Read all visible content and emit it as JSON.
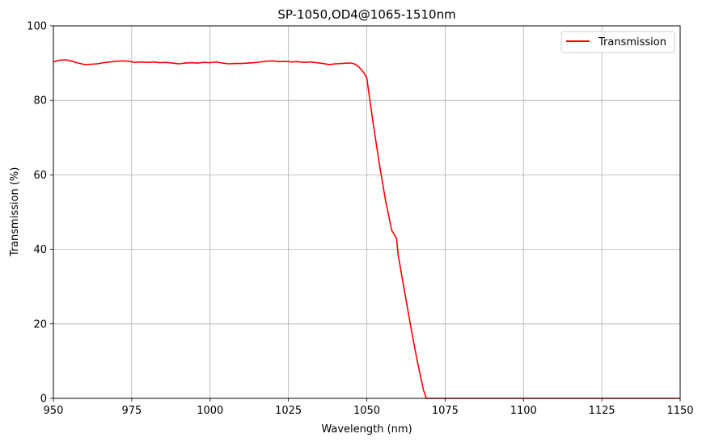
{
  "chart_data": {
    "type": "line",
    "title": "SP-1050,OD4@1065-1510nm",
    "xlabel": "Wavelength (nm)",
    "ylabel": "Transmission (%)",
    "xlim": [
      950,
      1150
    ],
    "ylim": [
      0,
      100
    ],
    "xticks": [
      950,
      975,
      1000,
      1025,
      1050,
      1075,
      1100,
      1125,
      1150
    ],
    "yticks": [
      0,
      20,
      40,
      60,
      80,
      100
    ],
    "grid": true,
    "legend_position": "upper right",
    "series": [
      {
        "name": "Transmission",
        "color": "#ff0000",
        "x": [
          950,
          952,
          954,
          956,
          958,
          960,
          962,
          964,
          966,
          968,
          970,
          972,
          974,
          976,
          978,
          980,
          982,
          984,
          986,
          988,
          990,
          992,
          994,
          996,
          998,
          1000,
          1002,
          1004,
          1006,
          1008,
          1010,
          1012,
          1014,
          1016,
          1018,
          1020,
          1022,
          1024,
          1026,
          1028,
          1030,
          1032,
          1034,
          1036,
          1038,
          1040,
          1042,
          1044,
          1045,
          1046,
          1047,
          1048,
          1049,
          1050,
          1052,
          1054,
          1056,
          1058,
          1059.5,
          1060,
          1062,
          1064,
          1066,
          1068,
          1069,
          1070,
          1080,
          1090,
          1100,
          1110,
          1120,
          1130,
          1140,
          1150
        ],
        "values": [
          90.3,
          90.8,
          90.9,
          90.5,
          90.0,
          89.6,
          89.7,
          89.8,
          90.1,
          90.3,
          90.5,
          90.6,
          90.5,
          90.2,
          90.3,
          90.2,
          90.3,
          90.1,
          90.2,
          90.0,
          89.8,
          90.0,
          90.1,
          90.0,
          90.2,
          90.1,
          90.3,
          90.0,
          89.8,
          89.9,
          89.9,
          90.0,
          90.1,
          90.3,
          90.5,
          90.6,
          90.4,
          90.5,
          90.3,
          90.4,
          90.2,
          90.3,
          90.1,
          89.9,
          89.6,
          89.8,
          89.9,
          90.0,
          90.0,
          89.8,
          89.3,
          88.5,
          87.5,
          86.0,
          74.0,
          63.0,
          53.0,
          45.0,
          43.0,
          38.5,
          29.0,
          19.5,
          10.5,
          2.5,
          0.0,
          0.0,
          0.0,
          0.0,
          0.0,
          0.0,
          0.0,
          0.0,
          0.0,
          0.0
        ]
      }
    ]
  }
}
